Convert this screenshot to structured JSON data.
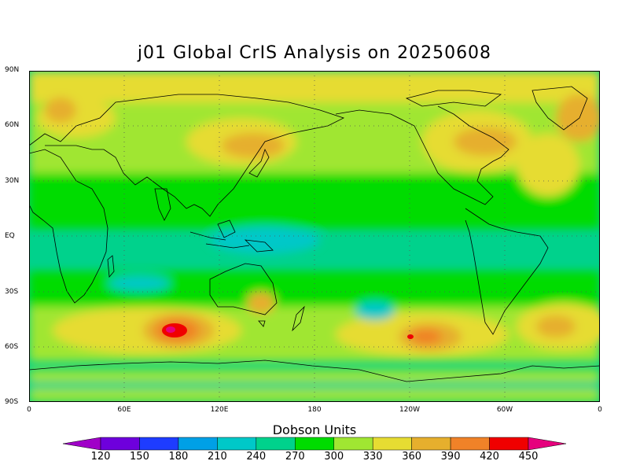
{
  "title": "j01 Global CrIS Analysis on 20250608",
  "units_label": "Dobson Units",
  "map": {
    "projection": "equirectangular",
    "lat_range": [
      -90,
      90
    ],
    "lon_range": [
      0,
      360
    ],
    "lat_ticks": [
      "90N",
      "60N",
      "30N",
      "EQ",
      "30S",
      "60S",
      "90S"
    ],
    "lon_ticks": [
      "0",
      "60E",
      "120E",
      "180",
      "120W",
      "60W",
      "0"
    ],
    "grid": "dotted"
  },
  "colorbar": {
    "labels": [
      "120",
      "150",
      "180",
      "210",
      "240",
      "270",
      "300",
      "330",
      "360",
      "390",
      "420",
      "450"
    ],
    "colors": [
      "#a000c8",
      "#6e00dc",
      "#1e3cff",
      "#00a0e6",
      "#00c8c8",
      "#00d28c",
      "#00dc00",
      "#a0e632",
      "#e6dc32",
      "#e6af2d",
      "#f08228",
      "#f00000",
      "#e6007d"
    ],
    "left_arrow_color": "#a000c8",
    "right_arrow_color": "#e6007d"
  },
  "field_colors": {
    "v270": "#00d28c",
    "v300": "#00dc00",
    "v330": "#a0e632",
    "v360": "#e6dc32",
    "v390": "#e6af2d",
    "v420": "#f08228",
    "v450": "#f00000",
    "v240": "#00c8c8"
  }
}
